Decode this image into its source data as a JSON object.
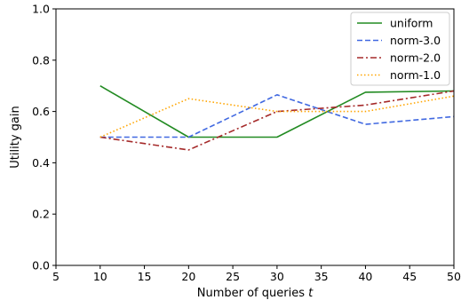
{
  "chart_data": {
    "type": "line",
    "xlabel": "Number of queries ",
    "xlabel_var": "t",
    "ylabel": "Utility gain",
    "xlim": [
      5,
      50
    ],
    "ylim": [
      0.0,
      1.0
    ],
    "xticks": [
      "5",
      "10",
      "15",
      "20",
      "25",
      "30",
      "35",
      "40",
      "45",
      "50"
    ],
    "yticks": [
      "0.0",
      "0.2",
      "0.4",
      "0.6",
      "0.8",
      "1.0"
    ],
    "grid": false,
    "legend_position": "top-right",
    "x": [
      10,
      20,
      30,
      40,
      50
    ],
    "series": [
      {
        "name": "uniform",
        "values": [
          0.7,
          0.5,
          0.5,
          0.675,
          0.68
        ],
        "color": "#228B22",
        "style": "solid"
      },
      {
        "name": "norm-3.0",
        "values": [
          0.5,
          0.5,
          0.665,
          0.55,
          0.58
        ],
        "color": "#4169E1",
        "style": "dashed"
      },
      {
        "name": "norm-2.0",
        "values": [
          0.5,
          0.45,
          0.6,
          0.625,
          0.68
        ],
        "color": "#A52A2A",
        "style": "dashdot"
      },
      {
        "name": "norm-1.0",
        "values": [
          0.5,
          0.65,
          0.6,
          0.6,
          0.66
        ],
        "color": "#FFA500",
        "style": "dotted"
      }
    ]
  }
}
